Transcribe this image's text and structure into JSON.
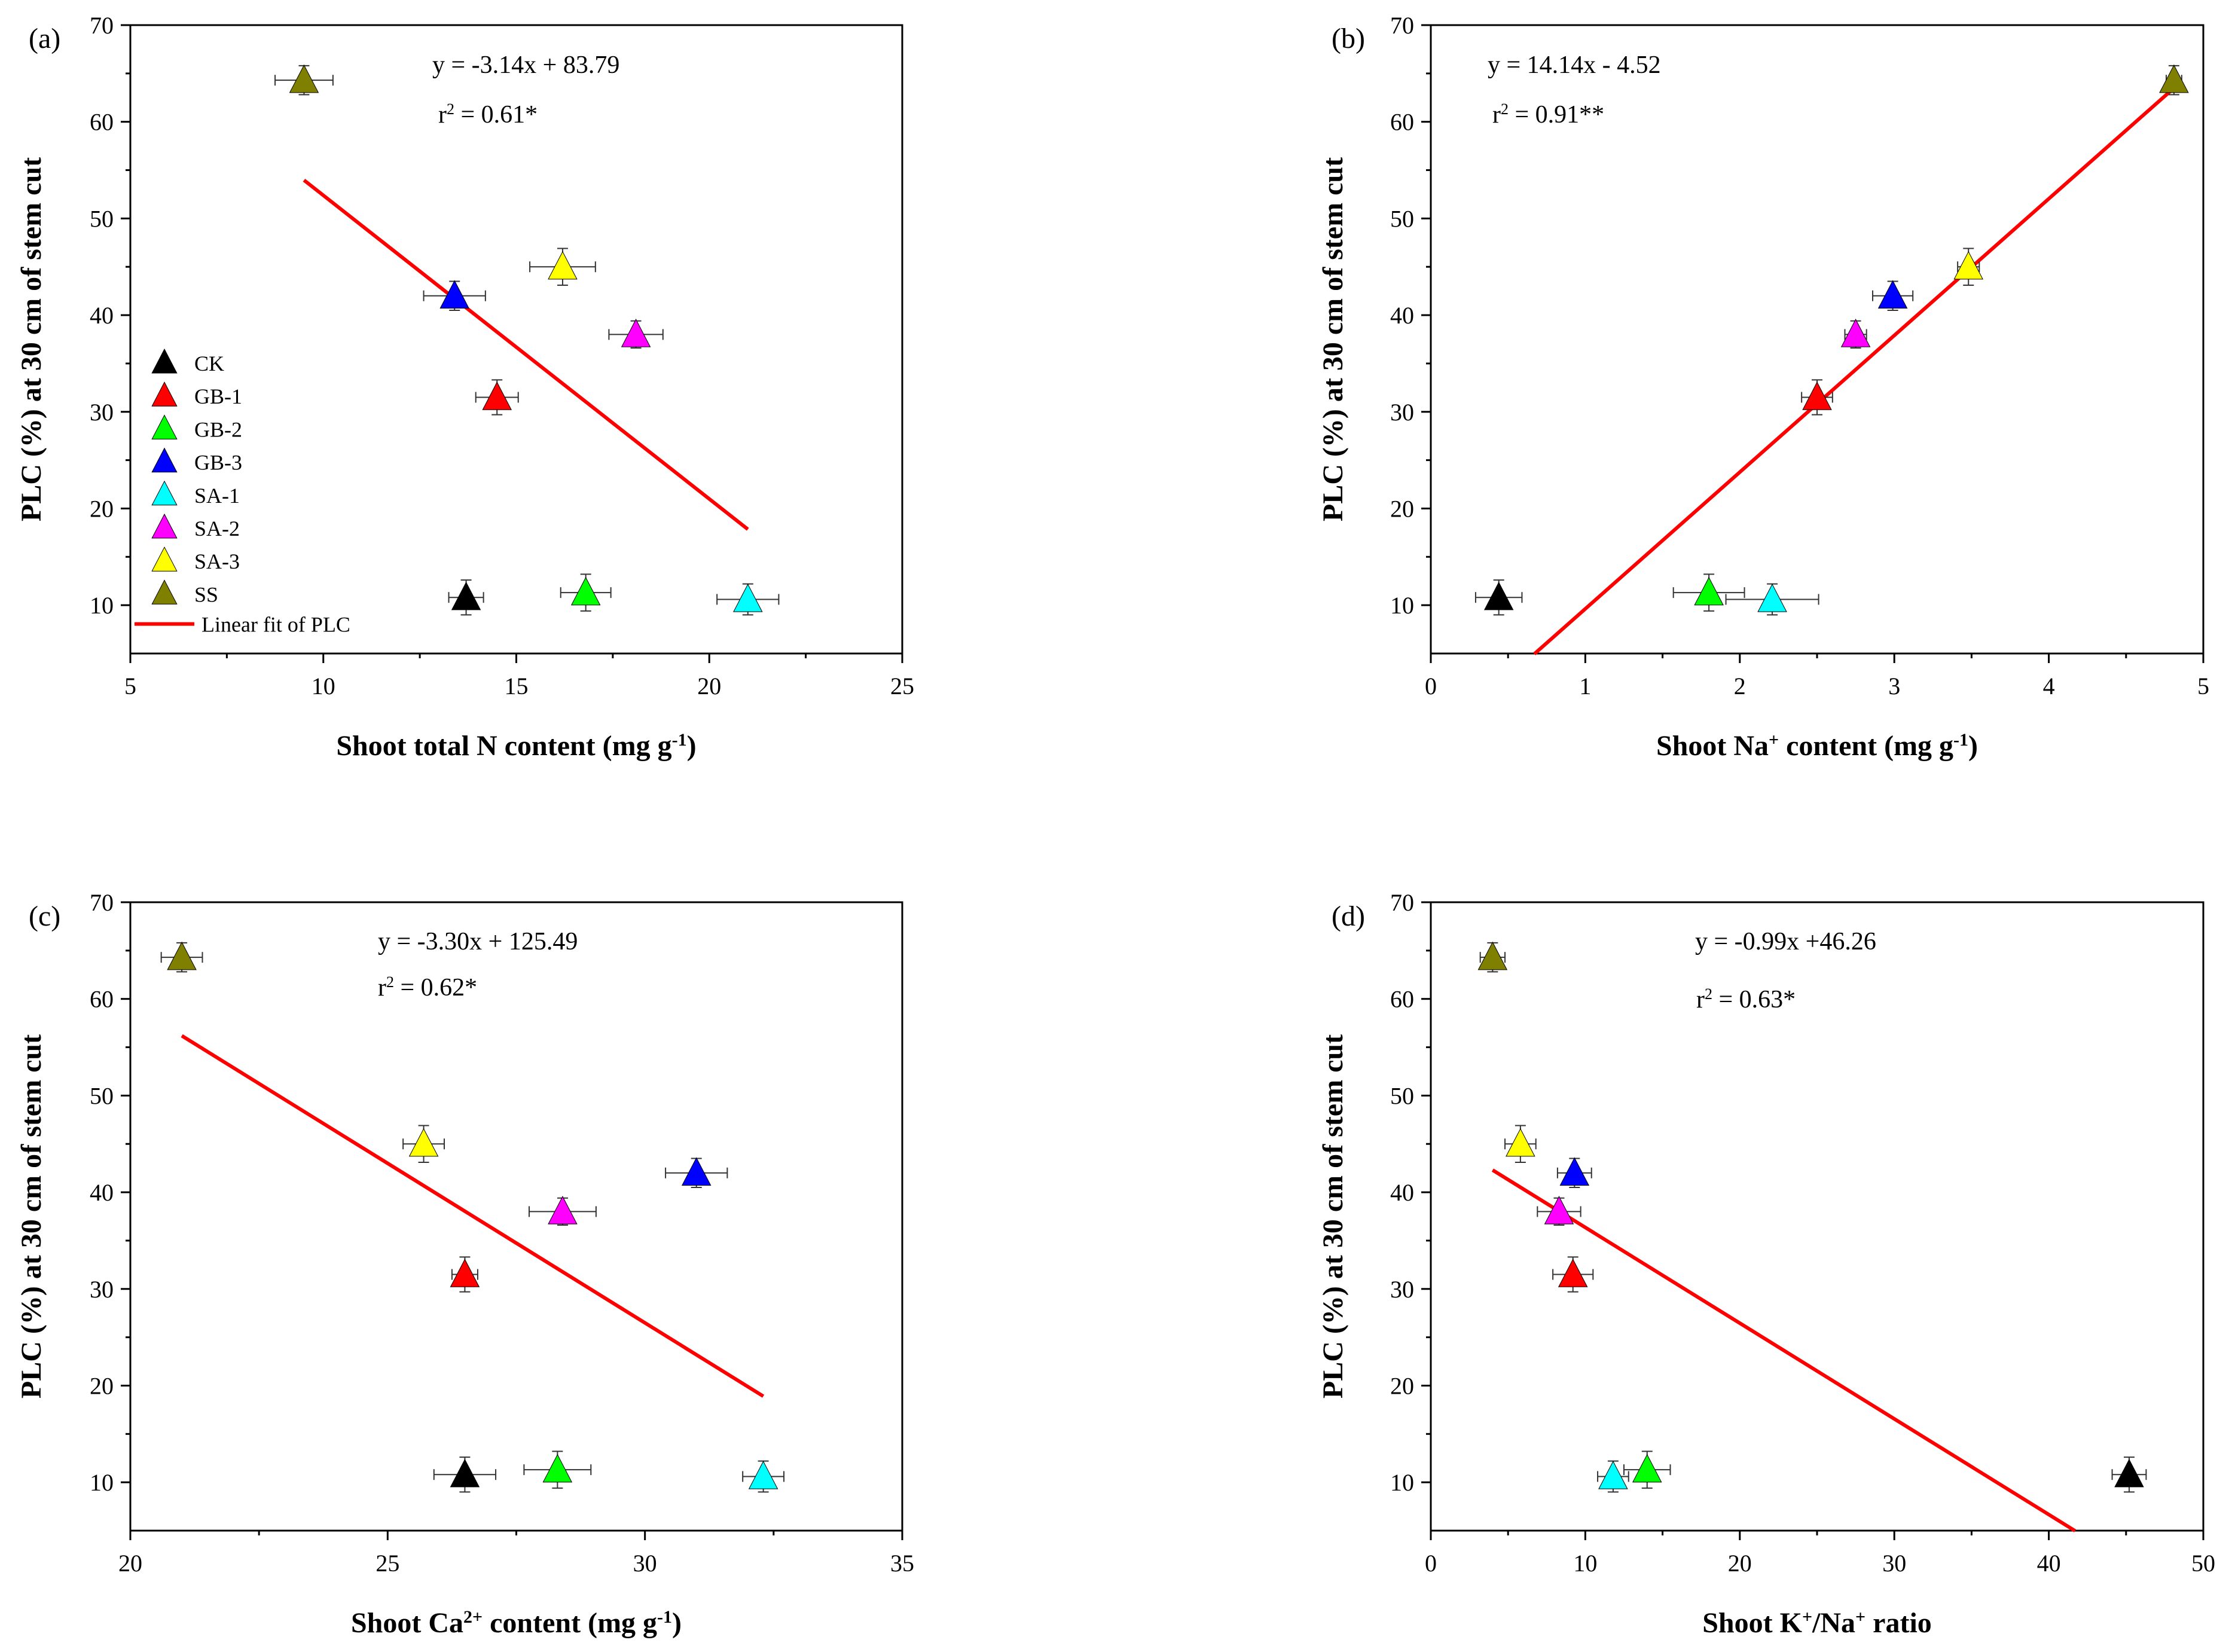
{
  "chart_data": [
    {
      "type": "scatter",
      "panel_label": "(a)",
      "title": "",
      "xlabel_parts": [
        {
          "t": "Shoot total N content (mg g"
        },
        {
          "t": "-1",
          "sup": true
        },
        {
          "t": ")"
        }
      ],
      "ylabel": "PLC (%) at 30 cm of stem cut",
      "xlim": [
        5,
        25
      ],
      "ylim": [
        5,
        70
      ],
      "xticks": [
        5,
        10,
        15,
        20,
        25
      ],
      "yticks": [
        10,
        20,
        30,
        40,
        50,
        60,
        70
      ],
      "equation": "y = -3.14x + 83.79",
      "r2_parts": [
        {
          "t": "r"
        },
        {
          "t": "2",
          "sup": true
        },
        {
          "t": " = 0.61*"
        }
      ],
      "fit": {
        "x": [
          9.5,
          21.0
        ]
      },
      "points": [
        {
          "name": "CK",
          "x": 13.7,
          "y": 10.8,
          "xerr": 0.45,
          "yerr": 1.8
        },
        {
          "name": "GB-1",
          "x": 14.5,
          "y": 31.5,
          "xerr": 0.55,
          "yerr": 1.8
        },
        {
          "name": "GB-2",
          "x": 16.8,
          "y": 11.3,
          "xerr": 0.65,
          "yerr": 1.9
        },
        {
          "name": "GB-3",
          "x": 13.4,
          "y": 42.0,
          "xerr": 0.8,
          "yerr": 1.5
        },
        {
          "name": "SA-1",
          "x": 21.0,
          "y": 10.6,
          "xerr": 0.8,
          "yerr": 1.6
        },
        {
          "name": "SA-2",
          "x": 18.1,
          "y": 38.0,
          "xerr": 0.7,
          "yerr": 1.4
        },
        {
          "name": "SA-3",
          "x": 16.2,
          "y": 45.0,
          "xerr": 0.85,
          "yerr": 1.9
        },
        {
          "name": "SS",
          "x": 9.5,
          "y": 64.3,
          "xerr": 0.75,
          "yerr": 1.5
        }
      ],
      "legend": {
        "position": "lower-left",
        "entries": [
          "CK",
          "GB-1",
          "GB-2",
          "GB-3",
          "SA-1",
          "SA-2",
          "SA-3",
          "SS"
        ],
        "fit_label": "Linear fit of PLC"
      }
    },
    {
      "type": "scatter",
      "panel_label": "(b)",
      "title": "",
      "xlabel_parts": [
        {
          "t": "Shoot Na"
        },
        {
          "t": "+",
          "sup": true
        },
        {
          "t": " content (mg g"
        },
        {
          "t": "-1",
          "sup": true
        },
        {
          "t": ")"
        }
      ],
      "ylabel": "PLC (%) at 30 cm of stem cut",
      "xlim": [
        0,
        5
      ],
      "ylim": [
        5,
        70
      ],
      "xticks": [
        0,
        1,
        2,
        3,
        4,
        5
      ],
      "yticks": [
        10,
        20,
        30,
        40,
        50,
        60,
        70
      ],
      "equation": "y = 14.14x - 4.52",
      "r2_parts": [
        {
          "t": "r"
        },
        {
          "t": "2",
          "sup": true
        },
        {
          "t": " = 0.91**"
        }
      ],
      "fit": {
        "x": [
          0.67,
          4.81
        ]
      },
      "points": [
        {
          "name": "CK",
          "x": 0.44,
          "y": 10.8,
          "xerr": 0.15,
          "yerr": 1.8
        },
        {
          "name": "GB-1",
          "x": 2.5,
          "y": 31.5,
          "xerr": 0.1,
          "yerr": 1.8
        },
        {
          "name": "GB-2",
          "x": 1.8,
          "y": 11.3,
          "xerr": 0.23,
          "yerr": 1.9
        },
        {
          "name": "GB-3",
          "x": 2.99,
          "y": 42.0,
          "xerr": 0.13,
          "yerr": 1.5
        },
        {
          "name": "SA-1",
          "x": 2.21,
          "y": 10.6,
          "xerr": 0.3,
          "yerr": 1.6
        },
        {
          "name": "SA-2",
          "x": 2.75,
          "y": 38.0,
          "xerr": 0.07,
          "yerr": 1.4
        },
        {
          "name": "SA-3",
          "x": 3.48,
          "y": 45.0,
          "xerr": 0.07,
          "yerr": 1.9
        },
        {
          "name": "SS",
          "x": 4.81,
          "y": 64.3,
          "xerr": 0.05,
          "yerr": 1.5
        }
      ]
    },
    {
      "type": "scatter",
      "panel_label": "(c)",
      "title": "",
      "xlabel_parts": [
        {
          "t": "Shoot Ca"
        },
        {
          "t": "2+",
          "sup": true
        },
        {
          "t": " content (mg g"
        },
        {
          "t": "-1",
          "sup": true
        },
        {
          "t": ")"
        }
      ],
      "ylabel": "PLC (%) at 30 cm of stem cut",
      "xlim": [
        20,
        35
      ],
      "ylim": [
        5,
        70
      ],
      "xticks": [
        20,
        25,
        30,
        35
      ],
      "yticks": [
        10,
        20,
        30,
        40,
        50,
        60,
        70
      ],
      "equation": "y = -3.30x + 125.49",
      "r2_parts": [
        {
          "t": "r"
        },
        {
          "t": "2",
          "sup": true
        },
        {
          "t": " = 0.62*"
        }
      ],
      "fit": {
        "x": [
          21.0,
          32.3
        ]
      },
      "points": [
        {
          "name": "CK",
          "x": 26.5,
          "y": 10.8,
          "xerr": 0.6,
          "yerr": 1.8
        },
        {
          "name": "GB-1",
          "x": 26.5,
          "y": 31.5,
          "xerr": 0.25,
          "yerr": 1.8
        },
        {
          "name": "GB-2",
          "x": 28.3,
          "y": 11.3,
          "xerr": 0.65,
          "yerr": 1.9
        },
        {
          "name": "GB-3",
          "x": 31.0,
          "y": 42.0,
          "xerr": 0.6,
          "yerr": 1.5
        },
        {
          "name": "SA-1",
          "x": 32.3,
          "y": 10.6,
          "xerr": 0.4,
          "yerr": 1.6
        },
        {
          "name": "SA-2",
          "x": 28.4,
          "y": 38.0,
          "xerr": 0.65,
          "yerr": 1.4
        },
        {
          "name": "SA-3",
          "x": 25.7,
          "y": 45.0,
          "xerr": 0.4,
          "yerr": 1.9
        },
        {
          "name": "SS",
          "x": 21.0,
          "y": 64.3,
          "xerr": 0.4,
          "yerr": 1.5
        }
      ]
    },
    {
      "type": "scatter",
      "panel_label": "(d)",
      "title": "",
      "xlabel_parts": [
        {
          "t": "Shoot K"
        },
        {
          "t": "+",
          "sup": true
        },
        {
          "t": "/Na"
        },
        {
          "t": "+",
          "sup": true
        },
        {
          "t": " ratio"
        }
      ],
      "ylabel": "PLC (%) at 30 cm of stem cut",
      "xlim": [
        0,
        50
      ],
      "ylim": [
        5,
        70
      ],
      "xticks": [
        0,
        10,
        20,
        30,
        40,
        50
      ],
      "yticks": [
        10,
        20,
        30,
        40,
        50,
        60,
        70
      ],
      "equation": "y = -0.99x +46.26",
      "r2_parts": [
        {
          "t": "r"
        },
        {
          "t": "2",
          "sup": true
        },
        {
          "t": " = 0.63*"
        }
      ],
      "fit": {
        "x": [
          4.0,
          41.7
        ]
      },
      "points": [
        {
          "name": "CK",
          "x": 45.2,
          "y": 10.8,
          "xerr": 1.1,
          "yerr": 1.8
        },
        {
          "name": "GB-1",
          "x": 9.2,
          "y": 31.5,
          "xerr": 1.3,
          "yerr": 1.8
        },
        {
          "name": "GB-2",
          "x": 14.0,
          "y": 11.3,
          "xerr": 1.5,
          "yerr": 1.9
        },
        {
          "name": "GB-3",
          "x": 9.3,
          "y": 42.0,
          "xerr": 1.1,
          "yerr": 1.5
        },
        {
          "name": "SA-1",
          "x": 11.8,
          "y": 10.6,
          "xerr": 1.0,
          "yerr": 1.6
        },
        {
          "name": "SA-2",
          "x": 8.3,
          "y": 38.0,
          "xerr": 1.4,
          "yerr": 1.4
        },
        {
          "name": "SA-3",
          "x": 5.8,
          "y": 45.0,
          "xerr": 1.0,
          "yerr": 1.9
        },
        {
          "name": "SS",
          "x": 4.0,
          "y": 64.3,
          "xerr": 0.8,
          "yerr": 1.5
        }
      ]
    }
  ],
  "series_colors": {
    "CK": "#000000",
    "GB-1": "#ff0000",
    "GB-2": "#00ff00",
    "GB-3": "#0000ff",
    "SA-1": "#00ffff",
    "SA-2": "#ff00ff",
    "SA-3": "#ffff00",
    "SS": "#808000"
  },
  "fit_color": "#ff0000"
}
